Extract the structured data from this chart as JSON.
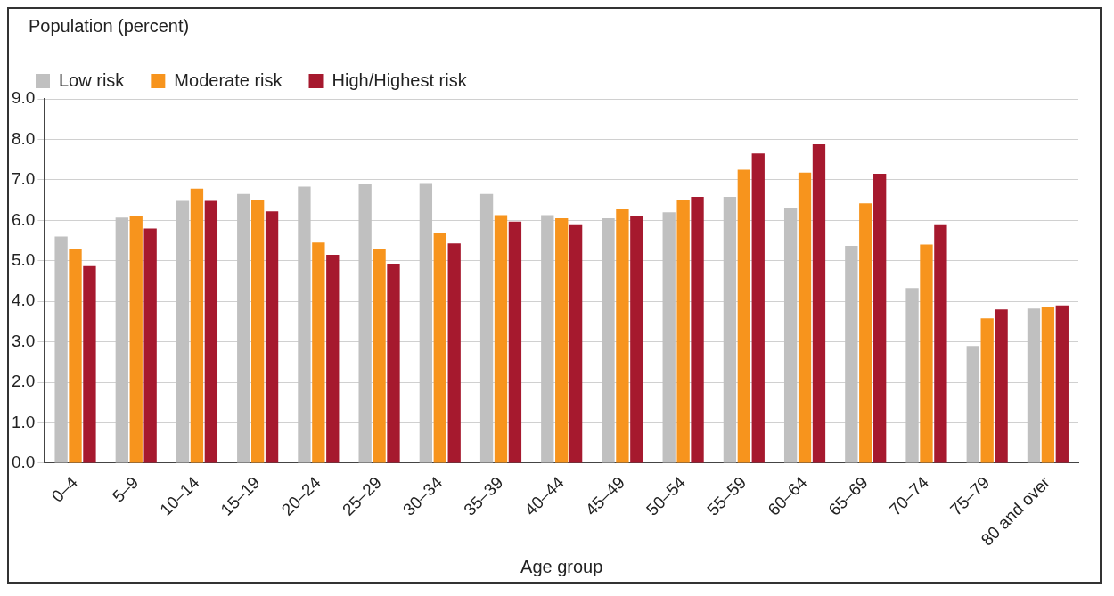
{
  "chart_data": {
    "type": "bar",
    "ylabel": "Population (percent)",
    "xlabel": "Age group",
    "categories": [
      "0–4",
      "5–9",
      "10–14",
      "15–19",
      "20–24",
      "25–29",
      "30–34",
      "35–39",
      "40–44",
      "45–49",
      "50–54",
      "55–59",
      "60–64",
      "65–69",
      "70–74",
      "75–79",
      "80 and over"
    ],
    "series": [
      {
        "name": "Low risk",
        "color": "#c0c0c0",
        "values": [
          5.6,
          6.07,
          6.48,
          6.65,
          6.83,
          6.9,
          6.92,
          6.65,
          6.13,
          6.05,
          6.2,
          6.58,
          6.3,
          5.37,
          4.33,
          2.9,
          3.82
        ]
      },
      {
        "name": "Moderate risk",
        "color": "#f7941d",
        "values": [
          5.3,
          6.1,
          6.78,
          6.5,
          5.45,
          5.3,
          5.7,
          6.13,
          6.05,
          6.27,
          6.5,
          7.25,
          7.18,
          6.42,
          5.4,
          3.58,
          3.85
        ]
      },
      {
        "name": "High/Highest risk",
        "color": "#a6192e",
        "values": [
          4.87,
          5.8,
          6.48,
          6.22,
          5.15,
          4.93,
          5.43,
          5.97,
          5.9,
          6.1,
          6.58,
          7.65,
          7.88,
          7.15,
          5.9,
          3.8,
          3.9
        ]
      }
    ],
    "ylim": [
      0,
      9
    ],
    "yticks": [
      {
        "value": 0,
        "label": "0.0"
      },
      {
        "value": 1,
        "label": "1.0"
      },
      {
        "value": 2,
        "label": "2.0"
      },
      {
        "value": 3,
        "label": "3.0"
      },
      {
        "value": 4,
        "label": "4.0"
      },
      {
        "value": 5,
        "label": "5.0"
      },
      {
        "value": 6,
        "label": "6.0"
      },
      {
        "value": 7,
        "label": "7.0"
      },
      {
        "value": 8,
        "label": "8.0"
      },
      {
        "value": 9,
        "label": "9.0"
      }
    ],
    "grid": "y",
    "legend": "top left"
  }
}
